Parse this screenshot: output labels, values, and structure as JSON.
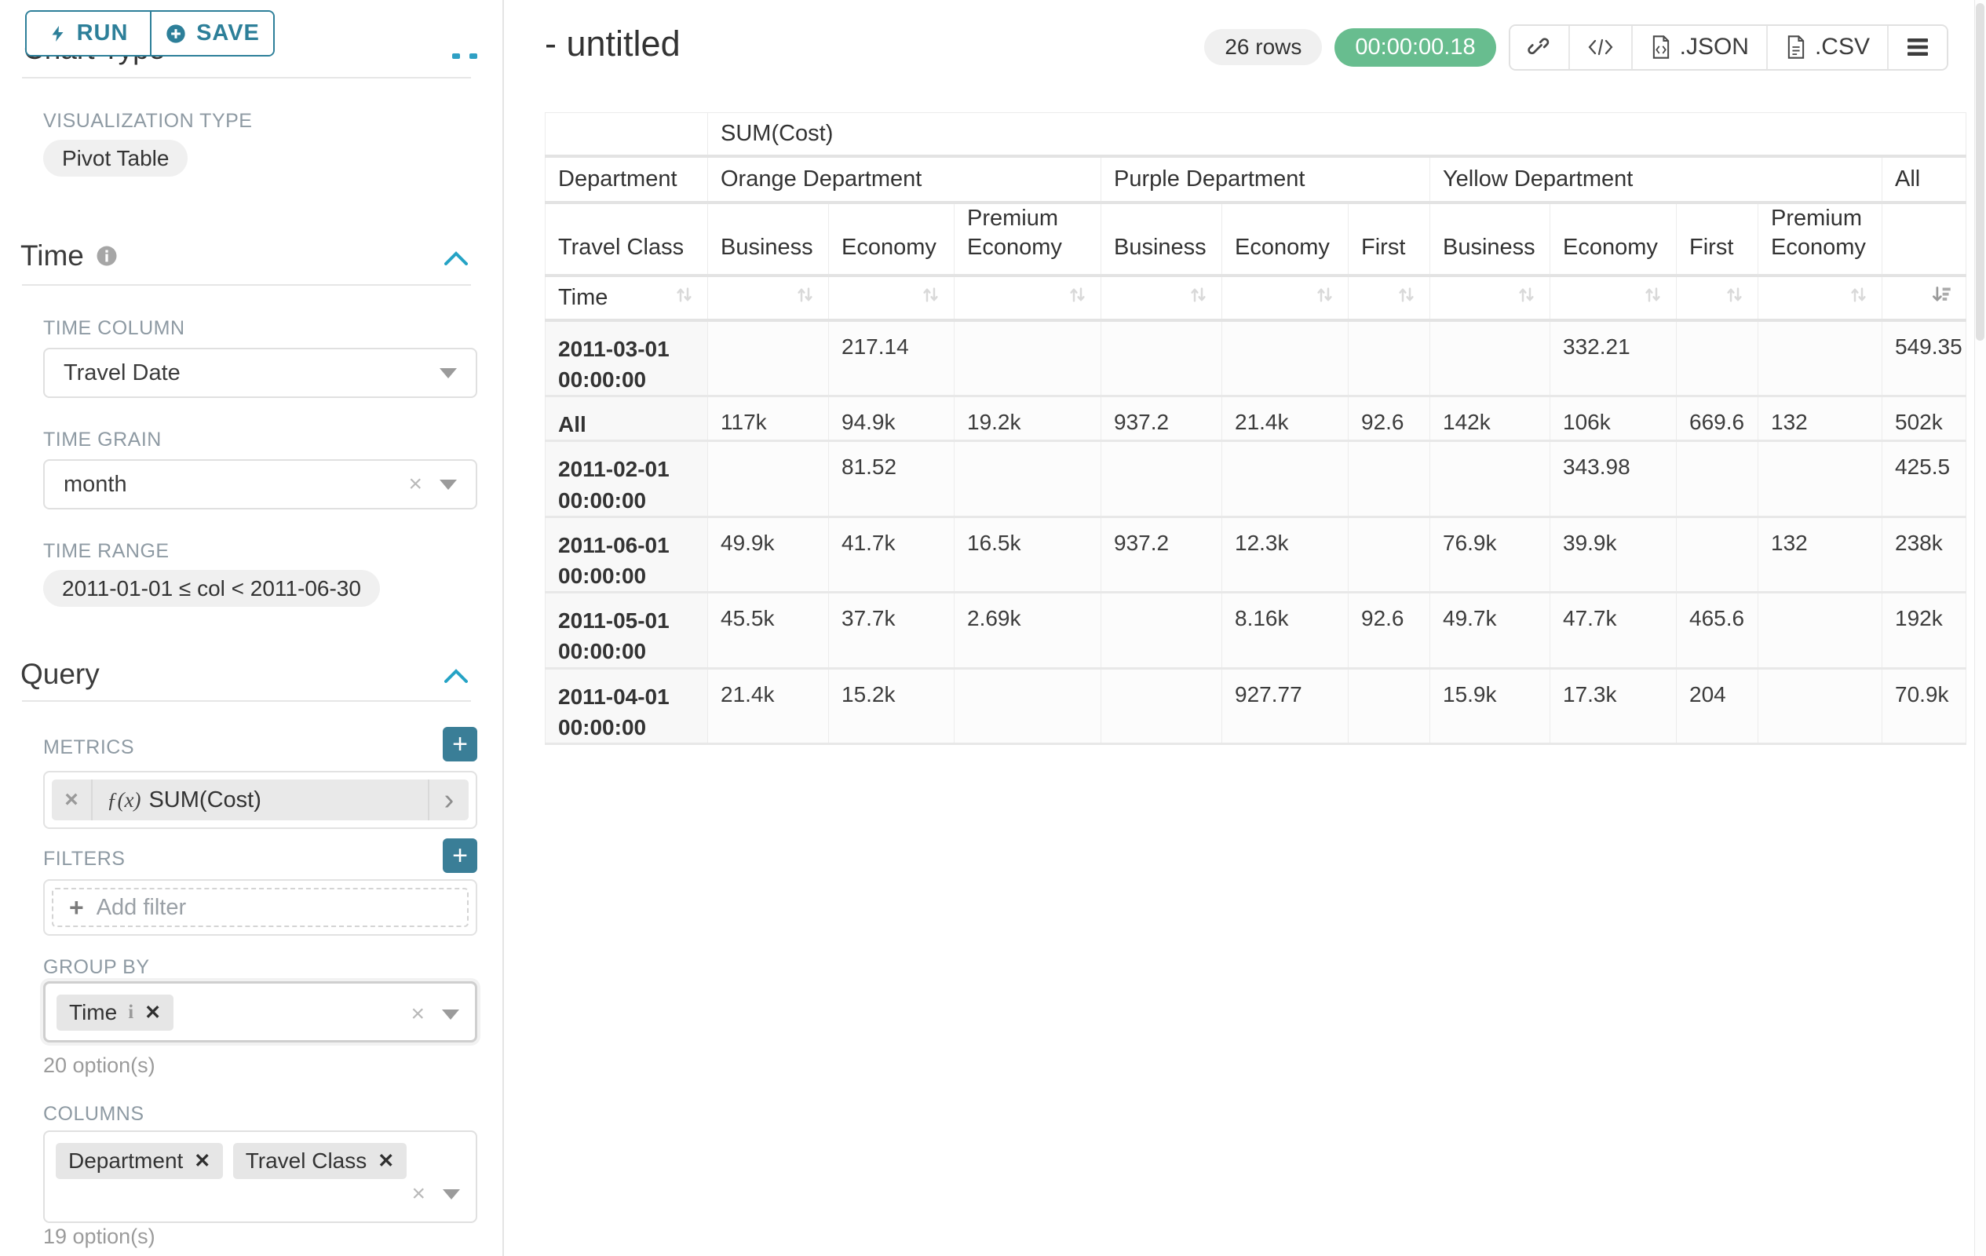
{
  "colors": {
    "accent": "#20a7c9",
    "teal_button": "#2d7f99",
    "success_green": "#68bd8f"
  },
  "sidebar": {
    "run_label": "RUN",
    "save_label": "SAVE",
    "chart_type_heading": "Chart Type",
    "viz_type_label": "VISUALIZATION TYPE",
    "viz_type_value": "Pivot Table",
    "time_section_label": "Time",
    "time_column_label": "TIME COLUMN",
    "time_column_value": "Travel Date",
    "time_grain_label": "TIME GRAIN",
    "time_grain_value": "month",
    "time_range_label": "TIME RANGE",
    "time_range_value": "2011-01-01 ≤ col < 2011-06-30",
    "query_section_label": "Query",
    "metrics_label": "METRICS",
    "metric_fx": "ƒ(x)",
    "metric_value": "SUM(Cost)",
    "filters_label": "FILTERS",
    "add_filter_label": "Add filter",
    "group_by_label": "GROUP BY",
    "group_by_chips": [
      "Time"
    ],
    "group_by_options_note": "20 option(s)",
    "columns_label": "COLUMNS",
    "columns_chips": [
      "Department",
      "Travel Class"
    ],
    "columns_options_note": "19 option(s)"
  },
  "header": {
    "title": "- untitled",
    "rows_badge": "26 rows",
    "timer": "00:00:00.18",
    "json_label": ".JSON",
    "csv_label": ".CSV"
  },
  "main": {
    "table": {
      "metric_header": "SUM(Cost)",
      "department_label": "Department",
      "travel_class_label": "Travel Class",
      "time_label": "Time",
      "all_label": "All",
      "groups": [
        {
          "name": "Orange Department",
          "cols": [
            "Business",
            "Economy",
            "Premium Economy"
          ]
        },
        {
          "name": "Purple Department",
          "cols": [
            "Business",
            "Economy",
            "First"
          ]
        },
        {
          "name": "Yellow Department",
          "cols": [
            "Business",
            "Economy",
            "First",
            "Premium Economy"
          ]
        }
      ],
      "rows": [
        {
          "label": "2011-03-01 00:00:00",
          "values": [
            "",
            "217.14",
            "",
            "",
            "",
            "",
            "",
            "332.21",
            "",
            "",
            "549.35"
          ]
        },
        {
          "label": "All",
          "values": [
            "117k",
            "94.9k",
            "19.2k",
            "937.2",
            "21.4k",
            "92.6",
            "142k",
            "106k",
            "669.6",
            "132",
            "502k"
          ]
        },
        {
          "label": "2011-02-01 00:00:00",
          "values": [
            "",
            "81.52",
            "",
            "",
            "",
            "",
            "",
            "343.98",
            "",
            "",
            "425.5"
          ]
        },
        {
          "label": "2011-06-01 00:00:00",
          "values": [
            "49.9k",
            "41.7k",
            "16.5k",
            "937.2",
            "12.3k",
            "",
            "76.9k",
            "39.9k",
            "",
            "132",
            "238k"
          ]
        },
        {
          "label": "2011-05-01 00:00:00",
          "values": [
            "45.5k",
            "37.7k",
            "2.69k",
            "",
            "8.16k",
            "92.6",
            "49.7k",
            "47.7k",
            "465.6",
            "",
            "192k"
          ]
        },
        {
          "label": "2011-04-01 00:00:00",
          "values": [
            "21.4k",
            "15.2k",
            "",
            "",
            "927.77",
            "",
            "15.9k",
            "17.3k",
            "204",
            "",
            "70.9k"
          ]
        }
      ]
    }
  }
}
